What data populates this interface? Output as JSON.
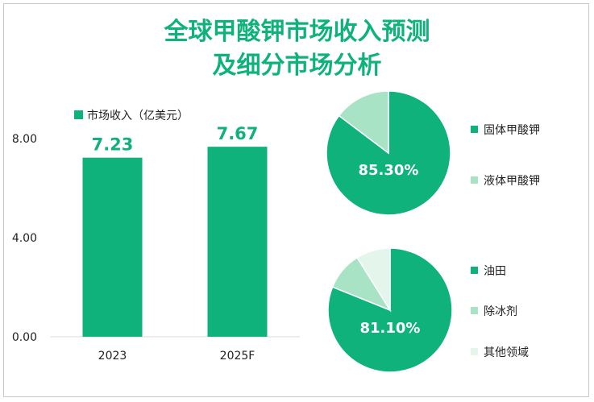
{
  "title_lines": [
    "全球甲酸钾市场收入预测",
    "及细分市场分析"
  ],
  "colors": {
    "accent": "#10b27c",
    "light": "#a8e3c6",
    "lighter": "#e4f6ec",
    "axis": "#d9d9d9",
    "text": "#222222"
  },
  "chart_data": [
    {
      "type": "bar",
      "legend": "市场收入（亿美元）",
      "categories": [
        "2023",
        "2025F"
      ],
      "values": [
        7.23,
        7.67
      ],
      "value_labels": [
        "7.23",
        "7.67"
      ],
      "ylim": [
        0,
        8
      ],
      "yticks": [
        "0.00",
        "4.00",
        "8.00"
      ],
      "xlabel": "",
      "ylabel": ""
    },
    {
      "type": "pie",
      "slices": [
        {
          "label": "固体甲酸钾",
          "value": 85.3
        },
        {
          "label": "液体甲酸钾",
          "value": 14.7
        }
      ],
      "data_label": "85.30%"
    },
    {
      "type": "pie",
      "slices": [
        {
          "label": "油田",
          "value": 81.1
        },
        {
          "label": "除冰剂",
          "value": 10.0
        },
        {
          "label": "其他领域",
          "value": 8.9
        }
      ],
      "data_label": "81.10%"
    }
  ]
}
